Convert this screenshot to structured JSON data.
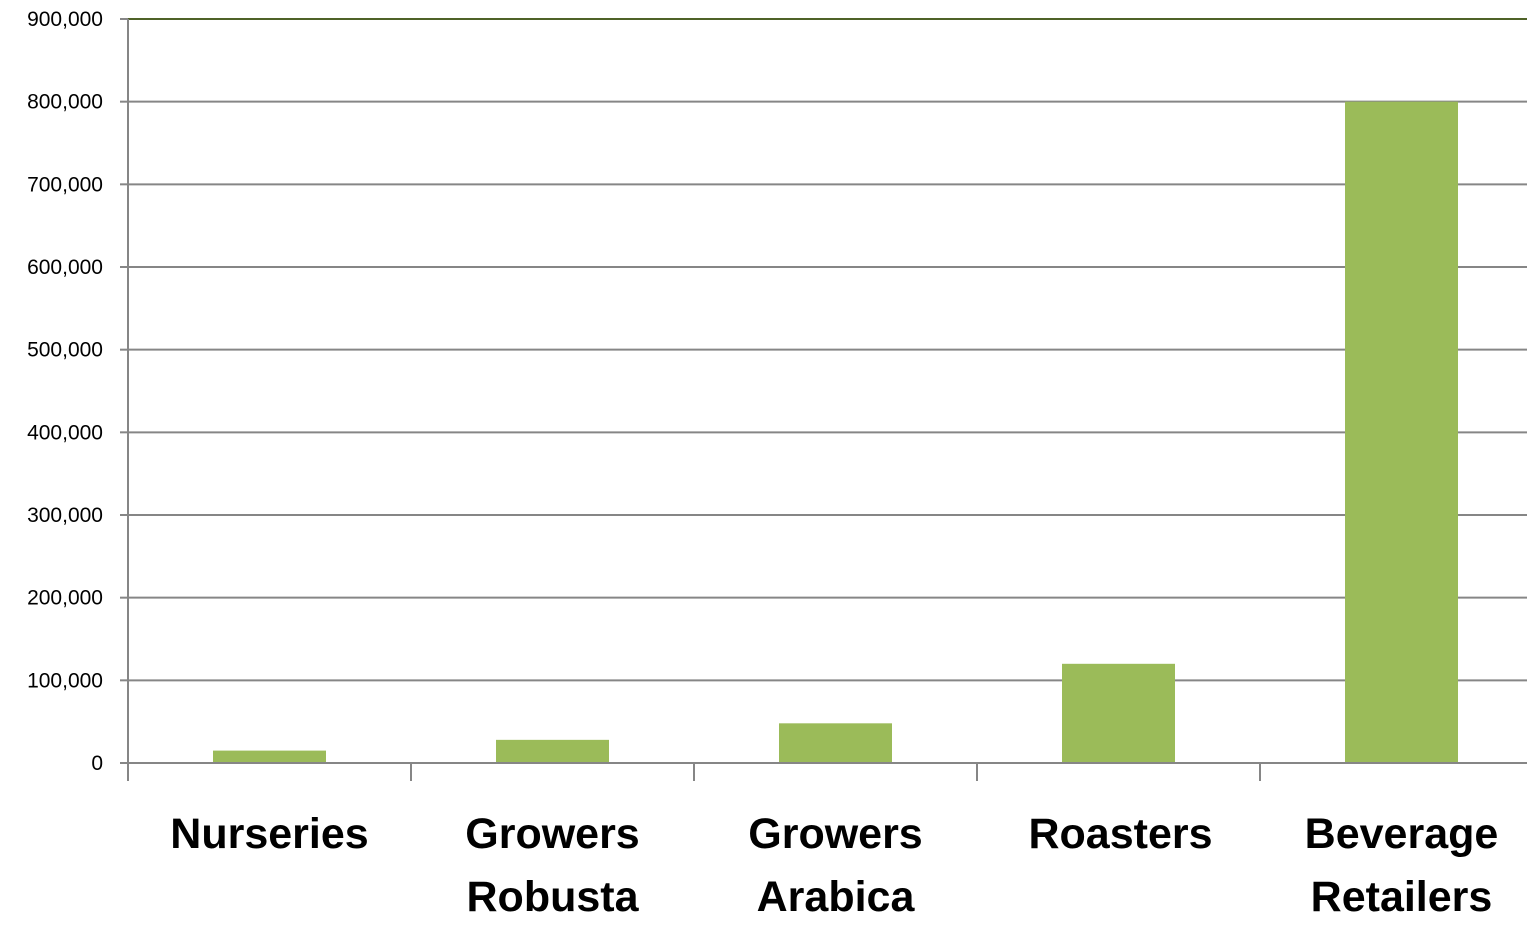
{
  "chart_data": {
    "type": "bar",
    "categories": [
      [
        "Nurseries"
      ],
      [
        "Growers",
        "Robusta"
      ],
      [
        "Growers",
        "Arabica"
      ],
      [
        "Roasters"
      ],
      [
        "Beverage",
        "Retailers"
      ]
    ],
    "values": [
      15000,
      28000,
      48000,
      120000,
      800000
    ],
    "ylim": [
      0,
      900000
    ],
    "yticks": [
      0,
      100000,
      200000,
      300000,
      400000,
      500000,
      600000,
      700000,
      800000,
      900000
    ],
    "ytick_labels": [
      "0",
      "100,000",
      "200,000",
      "300,000",
      "400,000",
      "500,000",
      "600,000",
      "700,000",
      "800,000",
      "900,000"
    ],
    "grid": true,
    "legend": "none",
    "colors": {
      "bar": "#9bbb59",
      "grid": "#868686",
      "top_border": "#4f6228",
      "axis": "#868686",
      "text": "#000000"
    }
  }
}
